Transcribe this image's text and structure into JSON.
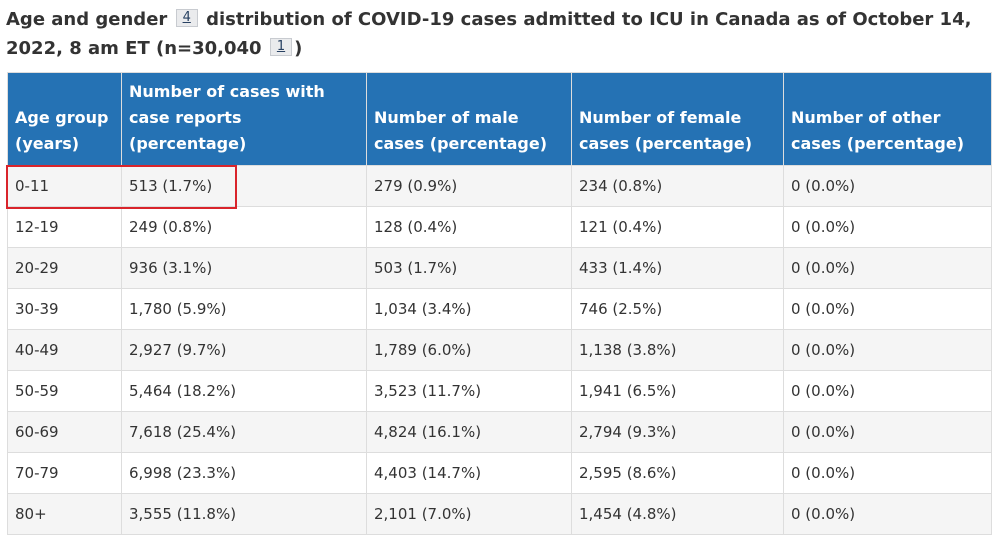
{
  "caption": {
    "part1": "Age and gender",
    "footnote_a": "4",
    "part2": "distribution of COVID-19 cases admitted to ICU in Canada as of October 14, 2022, 8 am ET (n=30,040",
    "footnote_b": "1",
    "part3": ")"
  },
  "table": {
    "headers": [
      "Age group (years)",
      "Number of cases with case reports (percentage)",
      "Number of male cases (percentage)",
      "Number of female cases (percentage)",
      "Number of other cases (percentage)"
    ],
    "rows": [
      [
        "0-11",
        "513 (1.7%)",
        "279 (0.9%)",
        "234 (0.8%)",
        "0 (0.0%)"
      ],
      [
        "12-19",
        "249 (0.8%)",
        "128 (0.4%)",
        "121 (0.4%)",
        "0 (0.0%)"
      ],
      [
        "20-29",
        "936 (3.1%)",
        "503 (1.7%)",
        "433 (1.4%)",
        "0 (0.0%)"
      ],
      [
        "30-39",
        "1,780 (5.9%)",
        "1,034 (3.4%)",
        "746 (2.5%)",
        "0 (0.0%)"
      ],
      [
        "40-49",
        "2,927 (9.7%)",
        "1,789 (6.0%)",
        "1,138 (3.8%)",
        "0 (0.0%)"
      ],
      [
        "50-59",
        "5,464 (18.2%)",
        "3,523 (11.7%)",
        "1,941 (6.5%)",
        "0 (0.0%)"
      ],
      [
        "60-69",
        "7,618 (25.4%)",
        "4,824 (16.1%)",
        "2,794 (9.3%)",
        "0 (0.0%)"
      ],
      [
        "70-79",
        "6,998 (23.3%)",
        "4,403 (14.7%)",
        "2,595 (8.6%)",
        "0 (0.0%)"
      ],
      [
        "80+",
        "3,555 (11.8%)",
        "2,101 (7.0%)",
        "1,454 (4.8%)",
        "0 (0.0%)"
      ]
    ]
  },
  "colors": {
    "header_bg": "#2572b4",
    "header_text": "#ffffff",
    "row_odd_bg": "#f5f5f5",
    "row_even_bg": "#ffffff",
    "highlight": "#d9242b"
  }
}
